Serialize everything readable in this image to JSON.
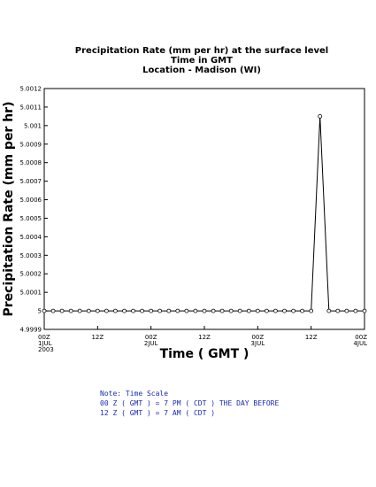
{
  "chart_data": {
    "type": "line",
    "title_lines": [
      "Precipitation Rate (mm per hr) at the surface level",
      "Time in GMT",
      "Location - Madison (WI)"
    ],
    "xlabel": "Time ( GMT )",
    "ylabel": "Precipitation Rate (mm per hr)",
    "ylim": [
      4.9999,
      5.0012
    ],
    "yticks": [
      "5.0012",
      "5.0011",
      "5.001",
      "5.0009",
      "5.0008",
      "5.0007",
      "5.0006",
      "5.0005",
      "5.0004",
      "5.0003",
      "5.0002",
      "5.0001",
      "5",
      "4.9999"
    ],
    "xlim_hours": [
      0,
      72
    ],
    "xticks": [
      {
        "hour": 0,
        "lines": [
          "00Z",
          "1JUL",
          "2003"
        ]
      },
      {
        "hour": 12,
        "lines": [
          "12Z"
        ]
      },
      {
        "hour": 24,
        "lines": [
          "00Z",
          "2JUL"
        ]
      },
      {
        "hour": 36,
        "lines": [
          "12Z"
        ]
      },
      {
        "hour": 48,
        "lines": [
          "00Z",
          "3JUL"
        ]
      },
      {
        "hour": 60,
        "lines": [
          "12Z"
        ]
      },
      {
        "hour": 72,
        "lines": [
          "00Z",
          "4JUL"
        ]
      }
    ],
    "series": [
      {
        "x_hours": [
          0,
          2,
          4,
          6,
          8,
          10,
          12,
          14,
          16,
          18,
          20,
          22,
          24,
          26,
          28,
          30,
          32,
          34,
          36,
          38,
          40,
          42,
          44,
          46,
          48,
          50,
          52,
          54,
          56,
          58,
          60,
          62,
          64,
          66,
          68,
          70,
          72
        ],
        "values": [
          5,
          5,
          5,
          5,
          5,
          5,
          5,
          5,
          5,
          5,
          5,
          5,
          5,
          5,
          5,
          5,
          5,
          5,
          5,
          5,
          5,
          5,
          5,
          5,
          5,
          5,
          5,
          5,
          5,
          5,
          5.0,
          5.00105,
          5.0,
          5,
          5,
          5,
          5
        ]
      }
    ],
    "marker": "open-circle",
    "grid": false
  },
  "note": {
    "lines": [
      "Note: Time Scale",
      "00 Z ( GMT ) = 7 PM ( CDT ) THE DAY BEFORE",
      "12 Z ( GMT ) = 7 AM ( CDT )"
    ],
    "color": "#1a2bb5"
  }
}
